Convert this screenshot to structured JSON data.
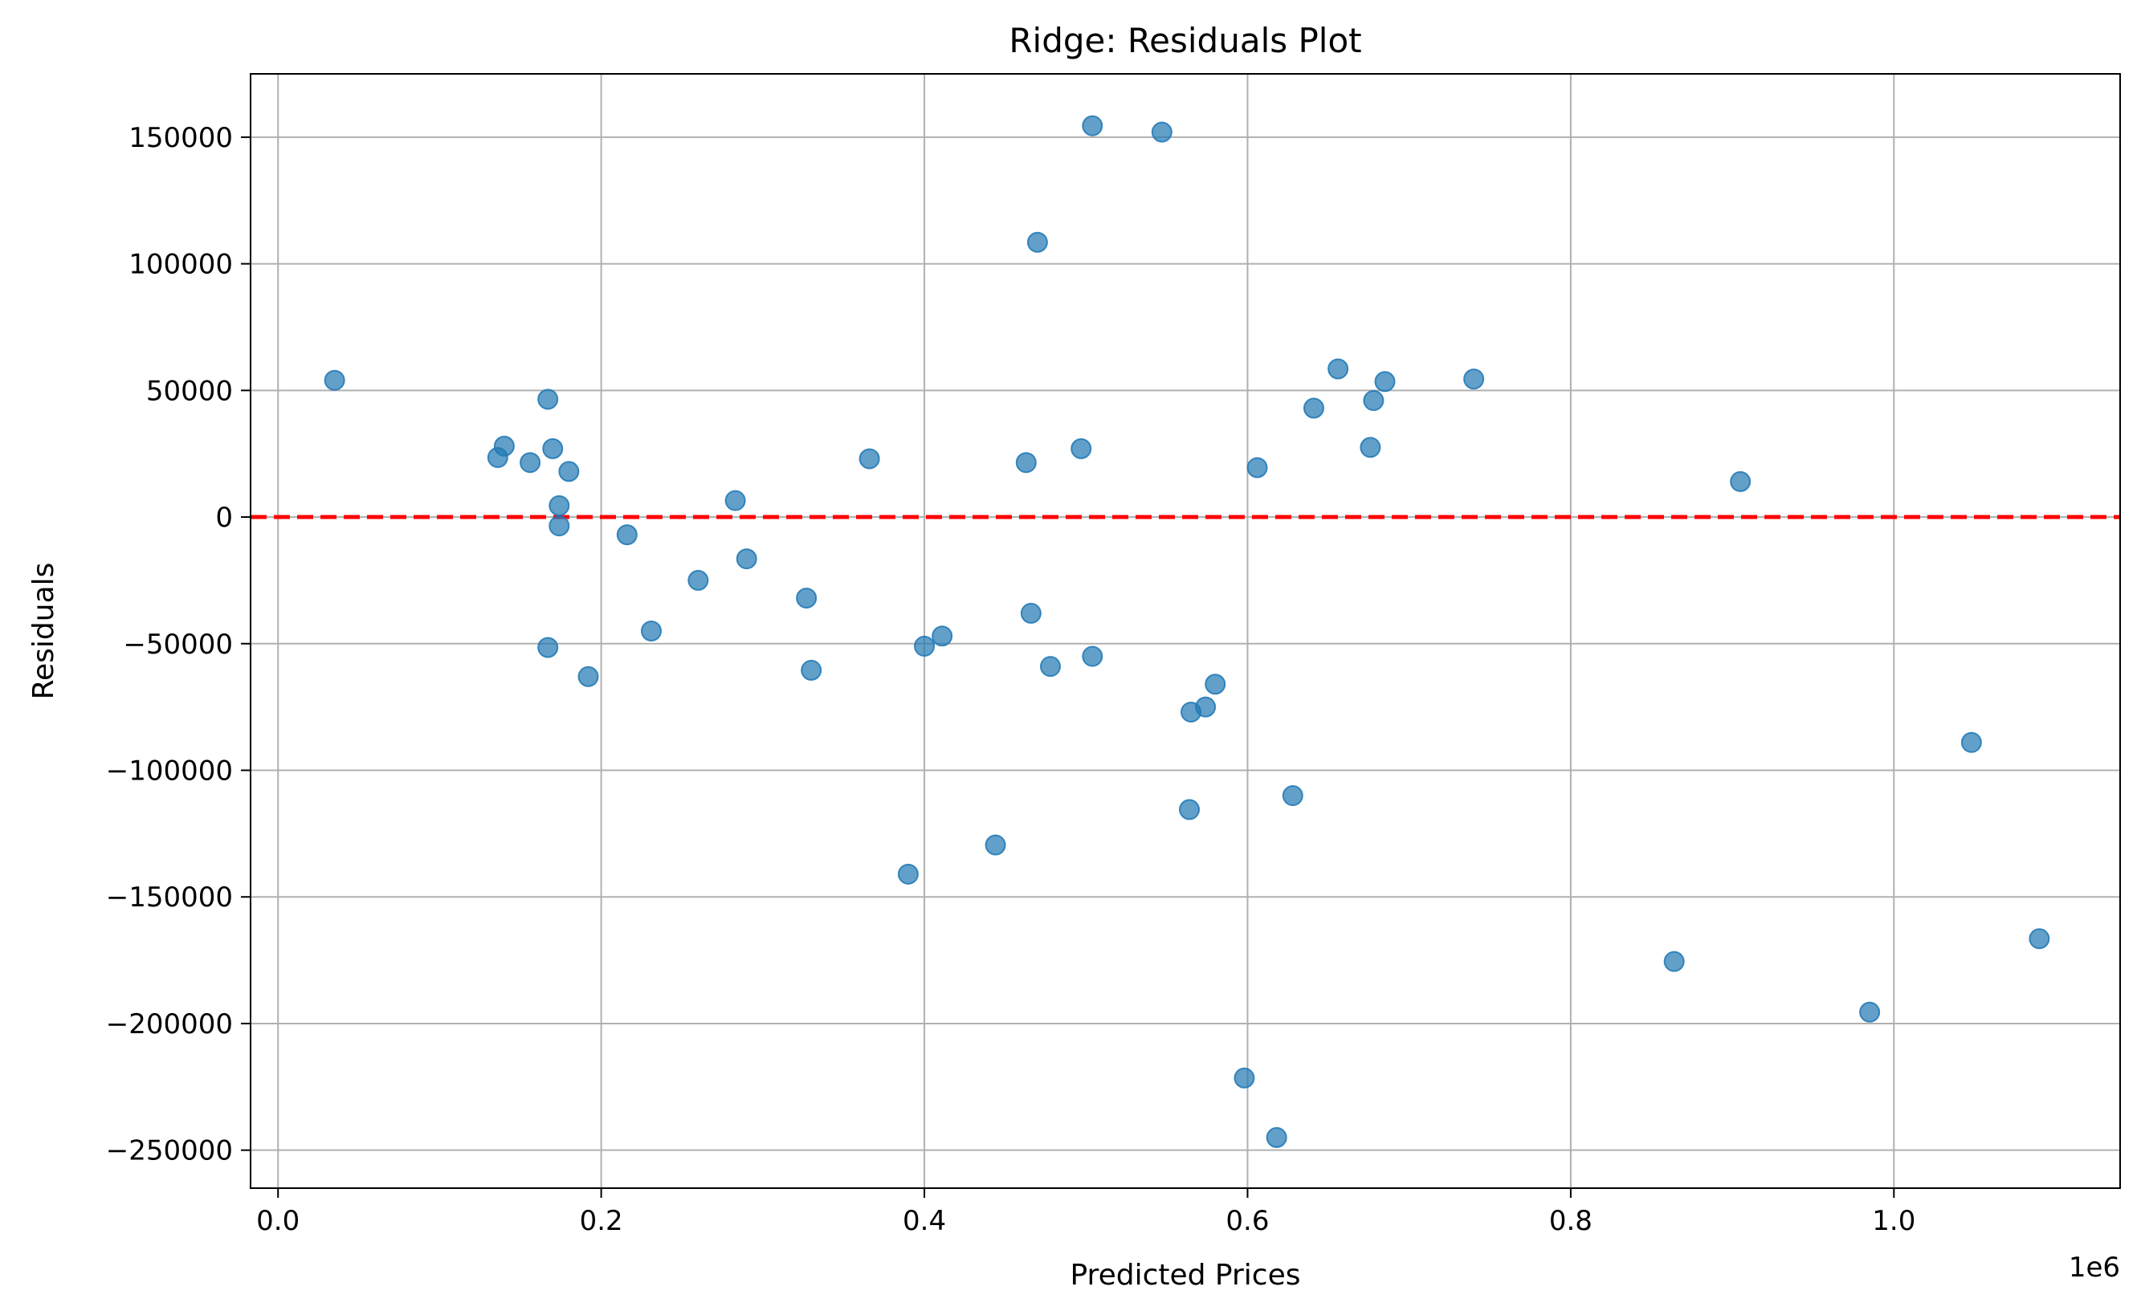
{
  "chart_data": {
    "type": "scatter",
    "title": "Ridge: Residuals Plot",
    "xlabel": "Predicted Prices",
    "ylabel": "Residuals",
    "x_offset_label": "1e6",
    "xlim": [
      -0.017,
      1.14
    ],
    "ylim": [
      -265000,
      175000
    ],
    "x_ticks": [
      0.0,
      0.2,
      0.4,
      0.6,
      0.8,
      1.0
    ],
    "x_tick_labels": [
      "0.0",
      "0.2",
      "0.4",
      "0.6",
      "0.8",
      "1.0"
    ],
    "y_ticks": [
      150000,
      100000,
      50000,
      0,
      -50000,
      -100000,
      -150000,
      -200000,
      -250000
    ],
    "y_tick_labels": [
      "150000",
      "100000",
      "50000",
      "0",
      "−50000",
      "−100000",
      "−150000",
      "−200000",
      "−250000"
    ],
    "grid": true,
    "reference_line": {
      "y": 0,
      "style": "dashed",
      "color": "#ff0000"
    },
    "point_color": "#1f77b4",
    "point_alpha": 0.7,
    "points": [
      [
        0.035,
        54000
      ],
      [
        0.136,
        23500
      ],
      [
        0.14,
        28000
      ],
      [
        0.156,
        21500
      ],
      [
        0.167,
        46500
      ],
      [
        0.167,
        -51500
      ],
      [
        0.17,
        27000
      ],
      [
        0.174,
        4500
      ],
      [
        0.174,
        -3500
      ],
      [
        0.18,
        18000
      ],
      [
        0.192,
        -63000
      ],
      [
        0.216,
        -7000
      ],
      [
        0.231,
        -45000
      ],
      [
        0.26,
        -25000
      ],
      [
        0.283,
        6500
      ],
      [
        0.29,
        -16500
      ],
      [
        0.327,
        -32000
      ],
      [
        0.33,
        -60500
      ],
      [
        0.366,
        23000
      ],
      [
        0.39,
        -141000
      ],
      [
        0.4,
        -51000
      ],
      [
        0.411,
        -47000
      ],
      [
        0.444,
        -129500
      ],
      [
        0.463,
        21500
      ],
      [
        0.466,
        -38000
      ],
      [
        0.47,
        108500
      ],
      [
        0.478,
        -59000
      ],
      [
        0.497,
        27000
      ],
      [
        0.504,
        154500
      ],
      [
        0.504,
        -55000
      ],
      [
        0.547,
        152000
      ],
      [
        0.564,
        -115500
      ],
      [
        0.565,
        -77000
      ],
      [
        0.574,
        -75000
      ],
      [
        0.58,
        -66000
      ],
      [
        0.598,
        -221500
      ],
      [
        0.606,
        19500
      ],
      [
        0.618,
        -245000
      ],
      [
        0.628,
        -110000
      ],
      [
        0.641,
        43000
      ],
      [
        0.656,
        58500
      ],
      [
        0.676,
        27500
      ],
      [
        0.678,
        46000
      ],
      [
        0.685,
        53500
      ],
      [
        0.74,
        54500
      ],
      [
        0.864,
        -175500
      ],
      [
        0.905,
        14000
      ],
      [
        0.985,
        -195500
      ],
      [
        1.048,
        -89000
      ],
      [
        1.09,
        -166500
      ]
    ]
  }
}
